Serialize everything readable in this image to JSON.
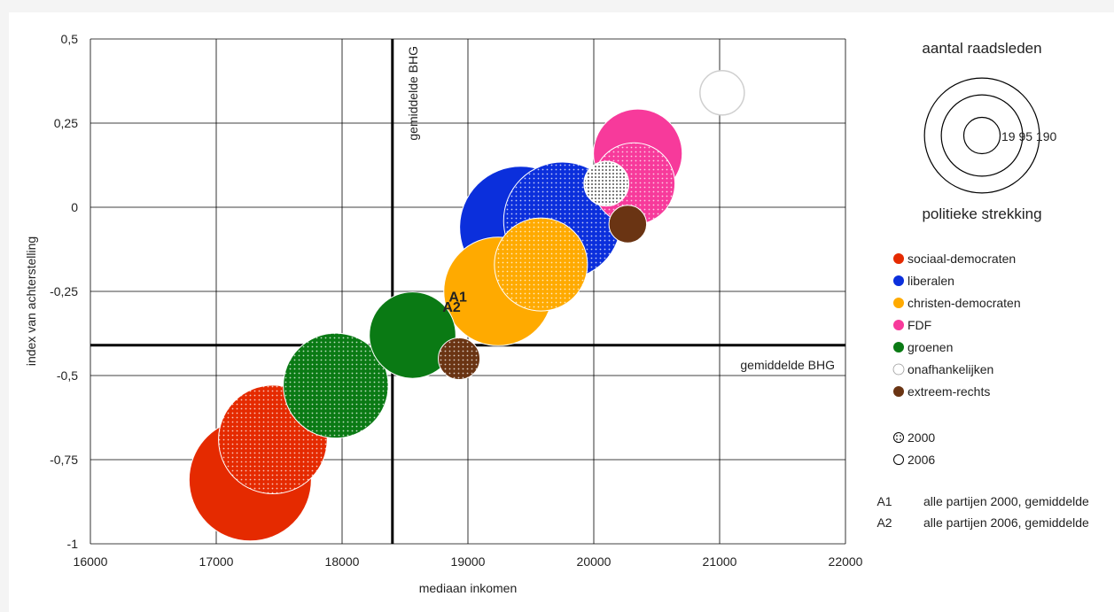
{
  "chart_data": {
    "type": "scatter",
    "subtype": "bubble",
    "xlabel": "mediaan inkomen",
    "ylabel": "index van achterstelling",
    "xlim": [
      16000,
      22000
    ],
    "ylim": [
      -1,
      0.5
    ],
    "xticks": [
      16000,
      17000,
      18000,
      19000,
      20000,
      21000,
      22000
    ],
    "yticks": [
      0.5,
      0.25,
      0,
      -0.25,
      -0.5,
      -0.75,
      -1
    ],
    "ytick_labels": [
      "0,5",
      "0,25",
      "0",
      "-0,25",
      "-0,5",
      "-0,75",
      "-1"
    ],
    "grid": true,
    "reference_lines": [
      {
        "orientation": "vertical",
        "x": 18400,
        "label": "gemiddelde BHG"
      },
      {
        "orientation": "horizontal",
        "y": -0.41,
        "label": "gemiddelde BHG"
      }
    ],
    "series": [
      {
        "name": "sociaal-democraten",
        "color": "#e52a00",
        "points": [
          {
            "year": "2000",
            "x": 17450,
            "y": -0.69,
            "size": 150
          },
          {
            "year": "2006",
            "x": 17270,
            "y": -0.81,
            "size": 190
          }
        ]
      },
      {
        "name": "liberalen",
        "color": "#0b2fdc",
        "points": [
          {
            "year": "2000",
            "x": 19750,
            "y": -0.04,
            "size": 175
          },
          {
            "year": "2006",
            "x": 19420,
            "y": -0.06,
            "size": 190
          }
        ]
      },
      {
        "name": "christen-democraten",
        "color": "#ffaa00",
        "points": [
          {
            "year": "2000",
            "x": 19580,
            "y": -0.17,
            "size": 110
          },
          {
            "year": "2006",
            "x": 19240,
            "y": -0.25,
            "size": 150
          }
        ]
      },
      {
        "name": "FDF",
        "color": "#f73a9b",
        "points": [
          {
            "year": "2000",
            "x": 20320,
            "y": 0.07,
            "size": 85
          },
          {
            "year": "2006",
            "x": 20350,
            "y": 0.16,
            "size": 100
          }
        ]
      },
      {
        "name": "groenen",
        "color": "#0a7a14",
        "points": [
          {
            "year": "2000",
            "x": 17950,
            "y": -0.53,
            "size": 140
          },
          {
            "year": "2006",
            "x": 18560,
            "y": -0.38,
            "size": 95
          }
        ]
      },
      {
        "name": "onafhankelijken",
        "color": "#ffffff",
        "points": [
          {
            "year": "2000",
            "x": 20100,
            "y": 0.07,
            "size": 25
          },
          {
            "year": "2006",
            "x": 21020,
            "y": 0.34,
            "size": 25
          }
        ]
      },
      {
        "name": "extreem-rechts",
        "color": "#6a3413",
        "points": [
          {
            "year": "2000",
            "x": 18930,
            "y": -0.45,
            "size": 22
          },
          {
            "year": "2006",
            "x": 20270,
            "y": -0.05,
            "size": 18
          }
        ]
      }
    ],
    "annotations": [
      {
        "label": "A1",
        "x": 18920,
        "y": -0.28,
        "description": "alle partijen 2000, gemiddelde"
      },
      {
        "label": "A2",
        "x": 18870,
        "y": -0.31,
        "description": "alle partijen 2006, gemiddelde"
      }
    ],
    "size_legend": {
      "title": "aantal raadsleden",
      "subtitle": "politieke strekking",
      "values": [
        "19",
        "95",
        "190"
      ]
    },
    "year_legend": [
      {
        "label": "2000",
        "style": "dotted"
      },
      {
        "label": "2006",
        "style": "solid"
      }
    ],
    "legend_position": "right"
  }
}
